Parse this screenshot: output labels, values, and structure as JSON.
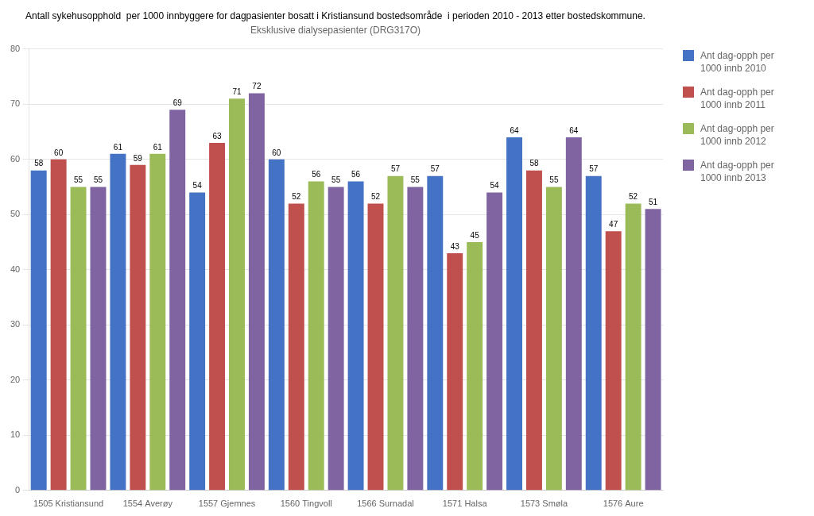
{
  "chart_data": {
    "type": "bar",
    "title": "Antall sykehusopphold  per 1000 innbyggere for dagpasienter bosatt i Kristiansund bostedsområde  i perioden 2010 - 2013 etter bostedskommune.",
    "subtitle": "Eksklusive dialysepasienter (DRG317O)",
    "categories": [
      "1505 Kristiansund",
      "1554 Averøy",
      "1557 Gjemnes",
      "1560 Tingvoll",
      "1566 Surnadal",
      "1571 Halsa",
      "1573 Smøla",
      "1576 Aure"
    ],
    "series": [
      {
        "name": "Ant dag-opph per\n1000 innb 2010",
        "color": "#4472C4",
        "values": [
          58,
          61,
          54,
          60,
          56,
          57,
          64,
          57
        ]
      },
      {
        "name": "Ant dag-opph per\n1000 innb 2011",
        "color": "#C0504D",
        "values": [
          60,
          59,
          63,
          52,
          52,
          43,
          58,
          47
        ]
      },
      {
        "name": "Ant dag-opph per\n1000 innb 2012",
        "color": "#9BBB59",
        "values": [
          55,
          61,
          71,
          56,
          57,
          45,
          55,
          52
        ]
      },
      {
        "name": "Ant dag-opph per\n1000 innb 2013",
        "color": "#8064A2",
        "values": [
          55,
          69,
          72,
          55,
          55,
          54,
          64,
          51
        ]
      }
    ],
    "ylim": [
      0,
      80
    ],
    "yticks": [
      0,
      10,
      20,
      30,
      40,
      50,
      60,
      70,
      80
    ],
    "grid": true,
    "legend": "right",
    "data_labels": true
  }
}
